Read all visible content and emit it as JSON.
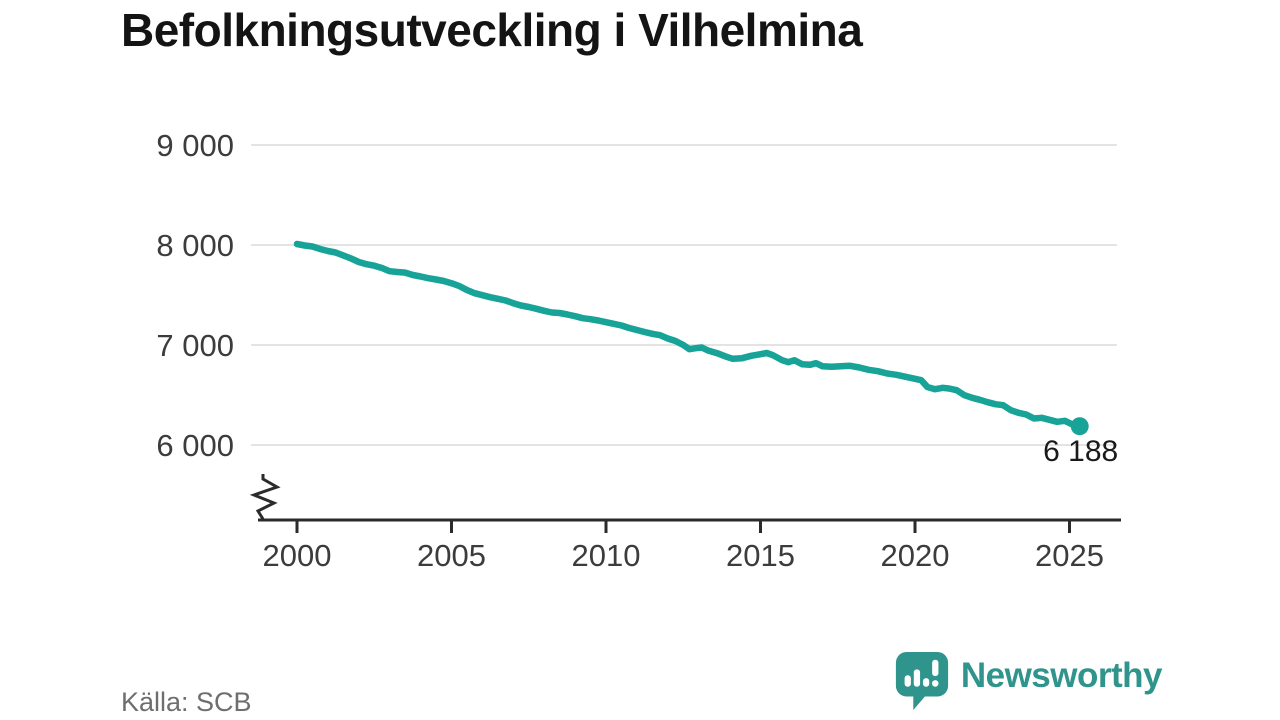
{
  "header": {
    "title": "Befolkningsutveckling i Vilhelmina"
  },
  "chart_data": {
    "type": "line",
    "title": "Befolkningsutveckling i Vilhelmina",
    "xlabel": "",
    "ylabel": "",
    "grid": true,
    "y_axis_break": true,
    "line_color": "#17a397",
    "grid_color": "#e3e3e3",
    "axis_color": "#2b2b2b",
    "tick_label_color": "#3c3c3c",
    "xlim": [
      1998.8,
      2026.6
    ],
    "ylim": [
      6000,
      9000
    ],
    "x_ticks": {
      "values": [
        2000,
        2005,
        2010,
        2015,
        2020,
        2025
      ],
      "labels": [
        "2000",
        "2005",
        "2010",
        "2015",
        "2020",
        "2025"
      ]
    },
    "y_ticks": {
      "values": [
        6000,
        7000,
        8000,
        9000
      ],
      "labels": [
        "6 000",
        "7 000",
        "8 000",
        "9 000"
      ]
    },
    "series": [
      {
        "name": "Befolkning Vilhelmina",
        "points": [
          [
            2000.0,
            8010
          ],
          [
            2000.25,
            7995
          ],
          [
            2000.5,
            7985
          ],
          [
            2000.75,
            7960
          ],
          [
            2001.0,
            7940
          ],
          [
            2001.25,
            7925
          ],
          [
            2001.5,
            7895
          ],
          [
            2001.75,
            7865
          ],
          [
            2002.0,
            7830
          ],
          [
            2002.25,
            7808
          ],
          [
            2002.5,
            7793
          ],
          [
            2002.75,
            7770
          ],
          [
            2003.0,
            7738
          ],
          [
            2003.25,
            7730
          ],
          [
            2003.5,
            7724
          ],
          [
            2003.75,
            7700
          ],
          [
            2004.0,
            7685
          ],
          [
            2004.25,
            7668
          ],
          [
            2004.5,
            7655
          ],
          [
            2004.75,
            7640
          ],
          [
            2005.0,
            7618
          ],
          [
            2005.25,
            7590
          ],
          [
            2005.5,
            7550
          ],
          [
            2005.75,
            7518
          ],
          [
            2006.0,
            7498
          ],
          [
            2006.25,
            7478
          ],
          [
            2006.5,
            7462
          ],
          [
            2006.75,
            7445
          ],
          [
            2007.0,
            7418
          ],
          [
            2007.25,
            7395
          ],
          [
            2007.5,
            7380
          ],
          [
            2007.75,
            7362
          ],
          [
            2008.0,
            7342
          ],
          [
            2008.25,
            7325
          ],
          [
            2008.5,
            7320
          ],
          [
            2008.75,
            7305
          ],
          [
            2009.0,
            7288
          ],
          [
            2009.25,
            7268
          ],
          [
            2009.5,
            7258
          ],
          [
            2009.75,
            7245
          ],
          [
            2010.0,
            7228
          ],
          [
            2010.25,
            7212
          ],
          [
            2010.5,
            7195
          ],
          [
            2010.75,
            7170
          ],
          [
            2011.0,
            7150
          ],
          [
            2011.25,
            7130
          ],
          [
            2011.5,
            7112
          ],
          [
            2011.75,
            7098
          ],
          [
            2012.0,
            7065
          ],
          [
            2012.25,
            7040
          ],
          [
            2012.5,
            7000
          ],
          [
            2012.7,
            6958
          ],
          [
            2012.9,
            6968
          ],
          [
            2013.1,
            6975
          ],
          [
            2013.3,
            6945
          ],
          [
            2013.6,
            6918
          ],
          [
            2013.9,
            6882
          ],
          [
            2014.1,
            6862
          ],
          [
            2014.4,
            6868
          ],
          [
            2014.7,
            6892
          ],
          [
            2015.0,
            6908
          ],
          [
            2015.2,
            6920
          ],
          [
            2015.4,
            6898
          ],
          [
            2015.7,
            6848
          ],
          [
            2015.9,
            6828
          ],
          [
            2016.1,
            6848
          ],
          [
            2016.35,
            6808
          ],
          [
            2016.6,
            6802
          ],
          [
            2016.8,
            6818
          ],
          [
            2017.0,
            6788
          ],
          [
            2017.3,
            6782
          ],
          [
            2017.6,
            6788
          ],
          [
            2017.9,
            6792
          ],
          [
            2018.2,
            6775
          ],
          [
            2018.5,
            6752
          ],
          [
            2018.8,
            6738
          ],
          [
            2019.1,
            6715
          ],
          [
            2019.4,
            6702
          ],
          [
            2019.7,
            6682
          ],
          [
            2020.0,
            6662
          ],
          [
            2020.2,
            6648
          ],
          [
            2020.4,
            6580
          ],
          [
            2020.65,
            6558
          ],
          [
            2020.9,
            6572
          ],
          [
            2021.1,
            6565
          ],
          [
            2021.35,
            6548
          ],
          [
            2021.6,
            6498
          ],
          [
            2021.85,
            6472
          ],
          [
            2022.1,
            6452
          ],
          [
            2022.35,
            6428
          ],
          [
            2022.6,
            6408
          ],
          [
            2022.85,
            6398
          ],
          [
            2023.1,
            6348
          ],
          [
            2023.35,
            6322
          ],
          [
            2023.6,
            6305
          ],
          [
            2023.85,
            6265
          ],
          [
            2024.1,
            6272
          ],
          [
            2024.35,
            6252
          ],
          [
            2024.6,
            6232
          ],
          [
            2024.85,
            6242
          ],
          [
            2025.05,
            6212
          ],
          [
            2025.33,
            6188
          ]
        ]
      }
    ],
    "end_point": {
      "x": 2025.33,
      "y": 6188,
      "label": "6 188"
    }
  },
  "footer": {
    "source": "Källa: SCB",
    "brand": "Newsworthy",
    "brand_color": "#2f948b"
  }
}
